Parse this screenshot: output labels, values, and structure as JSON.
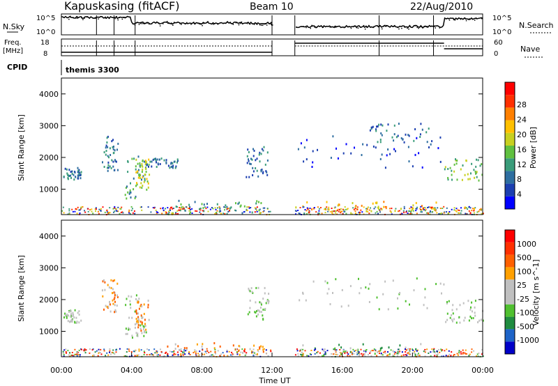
{
  "header": {
    "station": "Kapuskasing (fitACF)",
    "beam": "Beam 10",
    "date": "22/Aug/2010"
  },
  "top_panels": {
    "nsky_label": "N.Sky",
    "nsky_ticks": [
      "10^5",
      "10^0"
    ],
    "nsearch_label": "N.Search",
    "nsearch_ticks": [
      "10^5",
      "10^0"
    ],
    "freq_label_line1": "Freq.",
    "freq_label_line2": "[MHz]",
    "freq_ticks": [
      "18",
      "8"
    ],
    "nave_label": "Nave",
    "nave_ticks": [
      "60",
      "0"
    ],
    "cpid_label": "CPID",
    "cpid_value": "themis 3300"
  },
  "chart_data": [
    {
      "type": "heatmap",
      "panel": "power",
      "ylabel": "Slant Range [km]",
      "yticks": [
        1000,
        2000,
        3000,
        4000
      ],
      "ylim": [
        200,
        4500
      ],
      "xlim": [
        0,
        24
      ],
      "colorbar_label": "Power [dB]",
      "colorbar_ticks": [
        "4",
        "8",
        "12",
        "16",
        "20",
        "24",
        "28"
      ],
      "colorbar_colors": [
        "#0000ff",
        "#1c3fb0",
        "#2e6ea0",
        "#3a9c7a",
        "#60c040",
        "#c8d020",
        "#ffc000",
        "#ff8000",
        "#ff3000",
        "#ff0000"
      ],
      "regions": [
        {
          "t0": 0.1,
          "t1": 1.1,
          "r0": 1300,
          "r1": 1700,
          "level": 2
        },
        {
          "t0": 2.3,
          "t1": 3.2,
          "r0": 1600,
          "r1": 2700,
          "level": 2
        },
        {
          "t0": 3.6,
          "t1": 4.8,
          "r0": 700,
          "r1": 2200,
          "level": 3
        },
        {
          "t0": 4.2,
          "t1": 5.0,
          "r0": 1000,
          "r1": 2000,
          "level": 5
        },
        {
          "t0": 4.8,
          "t1": 6.6,
          "r0": 1700,
          "r1": 2000,
          "level": 2
        },
        {
          "t0": 6.0,
          "t1": 11.7,
          "r0": 250,
          "r1": 700,
          "level": 3
        },
        {
          "t0": 10.5,
          "t1": 11.8,
          "r0": 1400,
          "r1": 2400,
          "level": 2
        },
        {
          "t0": 13.3,
          "t1": 21.8,
          "r0": 1700,
          "r1": 2700,
          "level": 1
        },
        {
          "t0": 13.3,
          "t1": 21.8,
          "r0": 250,
          "r1": 650,
          "level": 6
        },
        {
          "t0": 21.8,
          "t1": 24.0,
          "r0": 1300,
          "r1": 2000,
          "level": 4
        },
        {
          "t0": 17.5,
          "t1": 21.0,
          "r0": 2500,
          "r1": 3100,
          "level": 2
        }
      ]
    },
    {
      "type": "heatmap",
      "panel": "velocity",
      "ylabel": "Slant Range [km]",
      "yticks": [
        1000,
        2000,
        3000,
        4000
      ],
      "ylim": [
        200,
        4500
      ],
      "xlim": [
        0,
        24
      ],
      "xticks": [
        "00:00",
        "04:00",
        "08:00",
        "12:00",
        "16:00",
        "20:00",
        "00:00"
      ],
      "xlabel": "Time UT",
      "colorbar_label": "Velocity [m s^-1]",
      "colorbar_ticks": [
        "1000",
        "500",
        "100",
        "25",
        "-25",
        "-100",
        "-500",
        "-1000"
      ],
      "colorbar_colors": [
        "#0000c8",
        "#1e64c8",
        "#208c40",
        "#50c030",
        "#c0c0c0",
        "#c0c0c0",
        "#ffa000",
        "#ff6000",
        "#ff3000",
        "#ff0000"
      ],
      "regions": [
        {
          "t0": 0.1,
          "t1": 1.1,
          "r0": 1300,
          "r1": 1700,
          "level": 4
        },
        {
          "t0": 2.3,
          "t1": 3.2,
          "r0": 1600,
          "r1": 2700,
          "level": 6
        },
        {
          "t0": 3.6,
          "t1": 4.8,
          "r0": 700,
          "r1": 2200,
          "level": 4
        },
        {
          "t0": 4.2,
          "t1": 5.0,
          "r0": 1000,
          "r1": 2000,
          "level": 6
        },
        {
          "t0": 6.0,
          "t1": 11.7,
          "r0": 250,
          "r1": 700,
          "level": 6
        },
        {
          "t0": 10.5,
          "t1": 11.8,
          "r0": 1400,
          "r1": 2400,
          "level": 4
        },
        {
          "t0": 13.3,
          "t1": 21.8,
          "r0": 1700,
          "r1": 2700,
          "level": 4
        },
        {
          "t0": 13.3,
          "t1": 21.8,
          "r0": 250,
          "r1": 650,
          "level": 3
        },
        {
          "t0": 21.8,
          "t1": 24.0,
          "r0": 1300,
          "r1": 2000,
          "level": 4
        }
      ]
    }
  ]
}
